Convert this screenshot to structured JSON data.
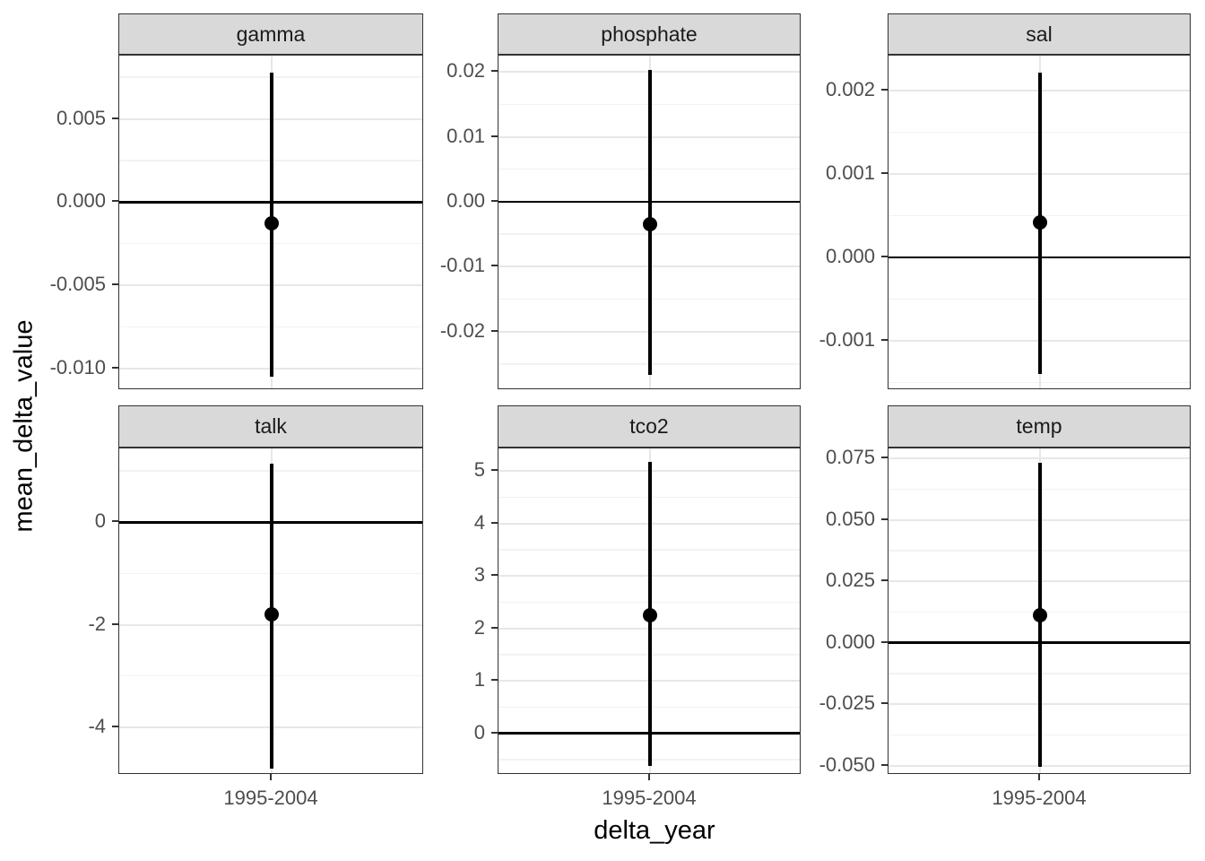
{
  "figure": {
    "x_axis_title": "delta_year",
    "y_axis_title": "mean_delta_value",
    "x_tick_label": "1995-2004"
  },
  "colors": {
    "background": "#ffffff",
    "panel_background": "#ffffff",
    "panel_border": "#333333",
    "strip_fill": "#d9d9d9",
    "strip_border": "#333333",
    "strip_text": "#1a1a1a",
    "grid_major": "#e7e7e7",
    "grid_minor": "#f2f2f2",
    "axis_text": "#4d4d4d",
    "axis_title": "#000000",
    "tick_mark": "#333333",
    "data_color": "#000000"
  },
  "chart_data": {
    "type": "scatter",
    "subtype": "faceted-pointrange",
    "title": "",
    "xlabel": "delta_year",
    "ylabel": "mean_delta_value",
    "x_categories": [
      "1995-2004"
    ],
    "grid": "major+minor",
    "legend": "none",
    "reference_hline": 0,
    "facets": [
      {
        "name": "gamma",
        "row": 0,
        "col": 0,
        "ylim": [
          -0.0113,
          0.0088
        ],
        "yticks": {
          "values": [
            0.005,
            0,
            -0.005,
            -0.01
          ],
          "labels": [
            "0.005",
            "0.000",
            "-0.005",
            "-0.010"
          ]
        },
        "yminor": [
          0.0075,
          0.0025,
          -0.0025,
          -0.0075
        ],
        "x": "1995-2004",
        "point": -0.0013,
        "ymax": 0.0078,
        "ymin": -0.0105,
        "hline": 0
      },
      {
        "name": "phosphate",
        "row": 0,
        "col": 1,
        "ylim": [
          -0.029,
          0.0225
        ],
        "yticks": {
          "values": [
            0.02,
            0.01,
            0,
            -0.01,
            -0.02
          ],
          "labels": [
            "0.02",
            "0.01",
            "0.00",
            "-0.01",
            "-0.02"
          ]
        },
        "yminor": [
          0.015,
          0.005,
          -0.005,
          -0.015,
          -0.025
        ],
        "x": "1995-2004",
        "point": -0.0034,
        "ymax": 0.0203,
        "ymin": -0.0266,
        "hline": 0
      },
      {
        "name": "sal",
        "row": 0,
        "col": 2,
        "ylim": [
          -0.00159,
          0.00242
        ],
        "yticks": {
          "values": [
            0.002,
            0.001,
            0,
            -0.001
          ],
          "labels": [
            "0.002",
            "0.001",
            "0.000",
            "-0.001"
          ]
        },
        "yminor": [
          0.0015,
          0.0005,
          -0.0005,
          -0.0015
        ],
        "x": "1995-2004",
        "point": 0.00042,
        "ymax": 0.00222,
        "ymin": -0.0014,
        "hline": 0
      },
      {
        "name": "talk",
        "row": 1,
        "col": 0,
        "ylim": [
          -4.93,
          1.44
        ],
        "yticks": {
          "values": [
            0,
            -2,
            -4
          ],
          "labels": [
            "0",
            "-2",
            "-4"
          ]
        },
        "yminor": [
          1,
          -1,
          -3
        ],
        "x": "1995-2004",
        "point": -1.8,
        "ymax": 1.15,
        "ymin": -4.8,
        "hline": 0
      },
      {
        "name": "tco2",
        "row": 1,
        "col": 1,
        "ylim": [
          -0.79,
          5.43
        ],
        "yticks": {
          "values": [
            5,
            4,
            3,
            2,
            1,
            0
          ],
          "labels": [
            "5",
            "4",
            "3",
            "2",
            "1",
            "0"
          ]
        },
        "yminor": [
          4.5,
          3.5,
          2.5,
          1.5,
          0.5,
          -0.5
        ],
        "x": "1995-2004",
        "point": 2.25,
        "ymax": 5.17,
        "ymin": -0.62,
        "hline": 0
      },
      {
        "name": "temp",
        "row": 1,
        "col": 2,
        "ylim": [
          -0.0537,
          0.079
        ],
        "yticks": {
          "values": [
            0.075,
            0.05,
            0.025,
            0,
            -0.025,
            -0.05
          ],
          "labels": [
            "0.075",
            "0.050",
            "0.025",
            "0.000",
            "-0.025",
            "-0.050"
          ]
        },
        "yminor": [
          0.0625,
          0.0375,
          0.0125,
          -0.0125,
          -0.0375
        ],
        "x": "1995-2004",
        "point": 0.0113,
        "ymax": 0.0733,
        "ymin": -0.0505,
        "hline": 0
      }
    ]
  }
}
